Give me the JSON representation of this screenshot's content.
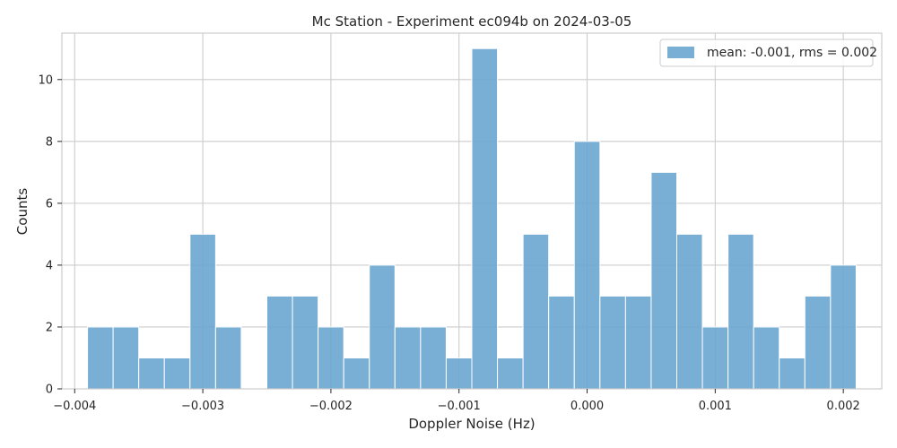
{
  "chart_data": {
    "type": "bar",
    "title": "Mc Station - Experiment ec094b on 2024-03-05",
    "xlabel": "Doppler Noise (Hz)",
    "ylabel": "Counts",
    "xlim": [
      -0.0041,
      0.0023
    ],
    "ylim": [
      0,
      11.5
    ],
    "x_ticks": [
      -0.004,
      -0.003,
      -0.002,
      -0.001,
      0.0,
      0.001,
      0.002
    ],
    "x_tick_labels": [
      "−0.004",
      "−0.003",
      "−0.002",
      "−0.001",
      "0.000",
      "0.001",
      "0.002"
    ],
    "y_ticks": [
      0,
      2,
      4,
      6,
      8,
      10
    ],
    "y_tick_labels": [
      "0",
      "2",
      "4",
      "6",
      "8",
      "10"
    ],
    "grid": true,
    "legend_position": "top-right",
    "series": [
      {
        "name": "mean: -0.001, rms = 0.002",
        "color": "#6aa6d0",
        "bin_start": -0.0039,
        "bin_width": 0.0002,
        "values": [
          2,
          2,
          1,
          1,
          5,
          2,
          0,
          3,
          3,
          2,
          1,
          4,
          2,
          2,
          1,
          11,
          1,
          5,
          3,
          8,
          3,
          3,
          7,
          5,
          2,
          5,
          2,
          1,
          3,
          4
        ]
      }
    ]
  }
}
